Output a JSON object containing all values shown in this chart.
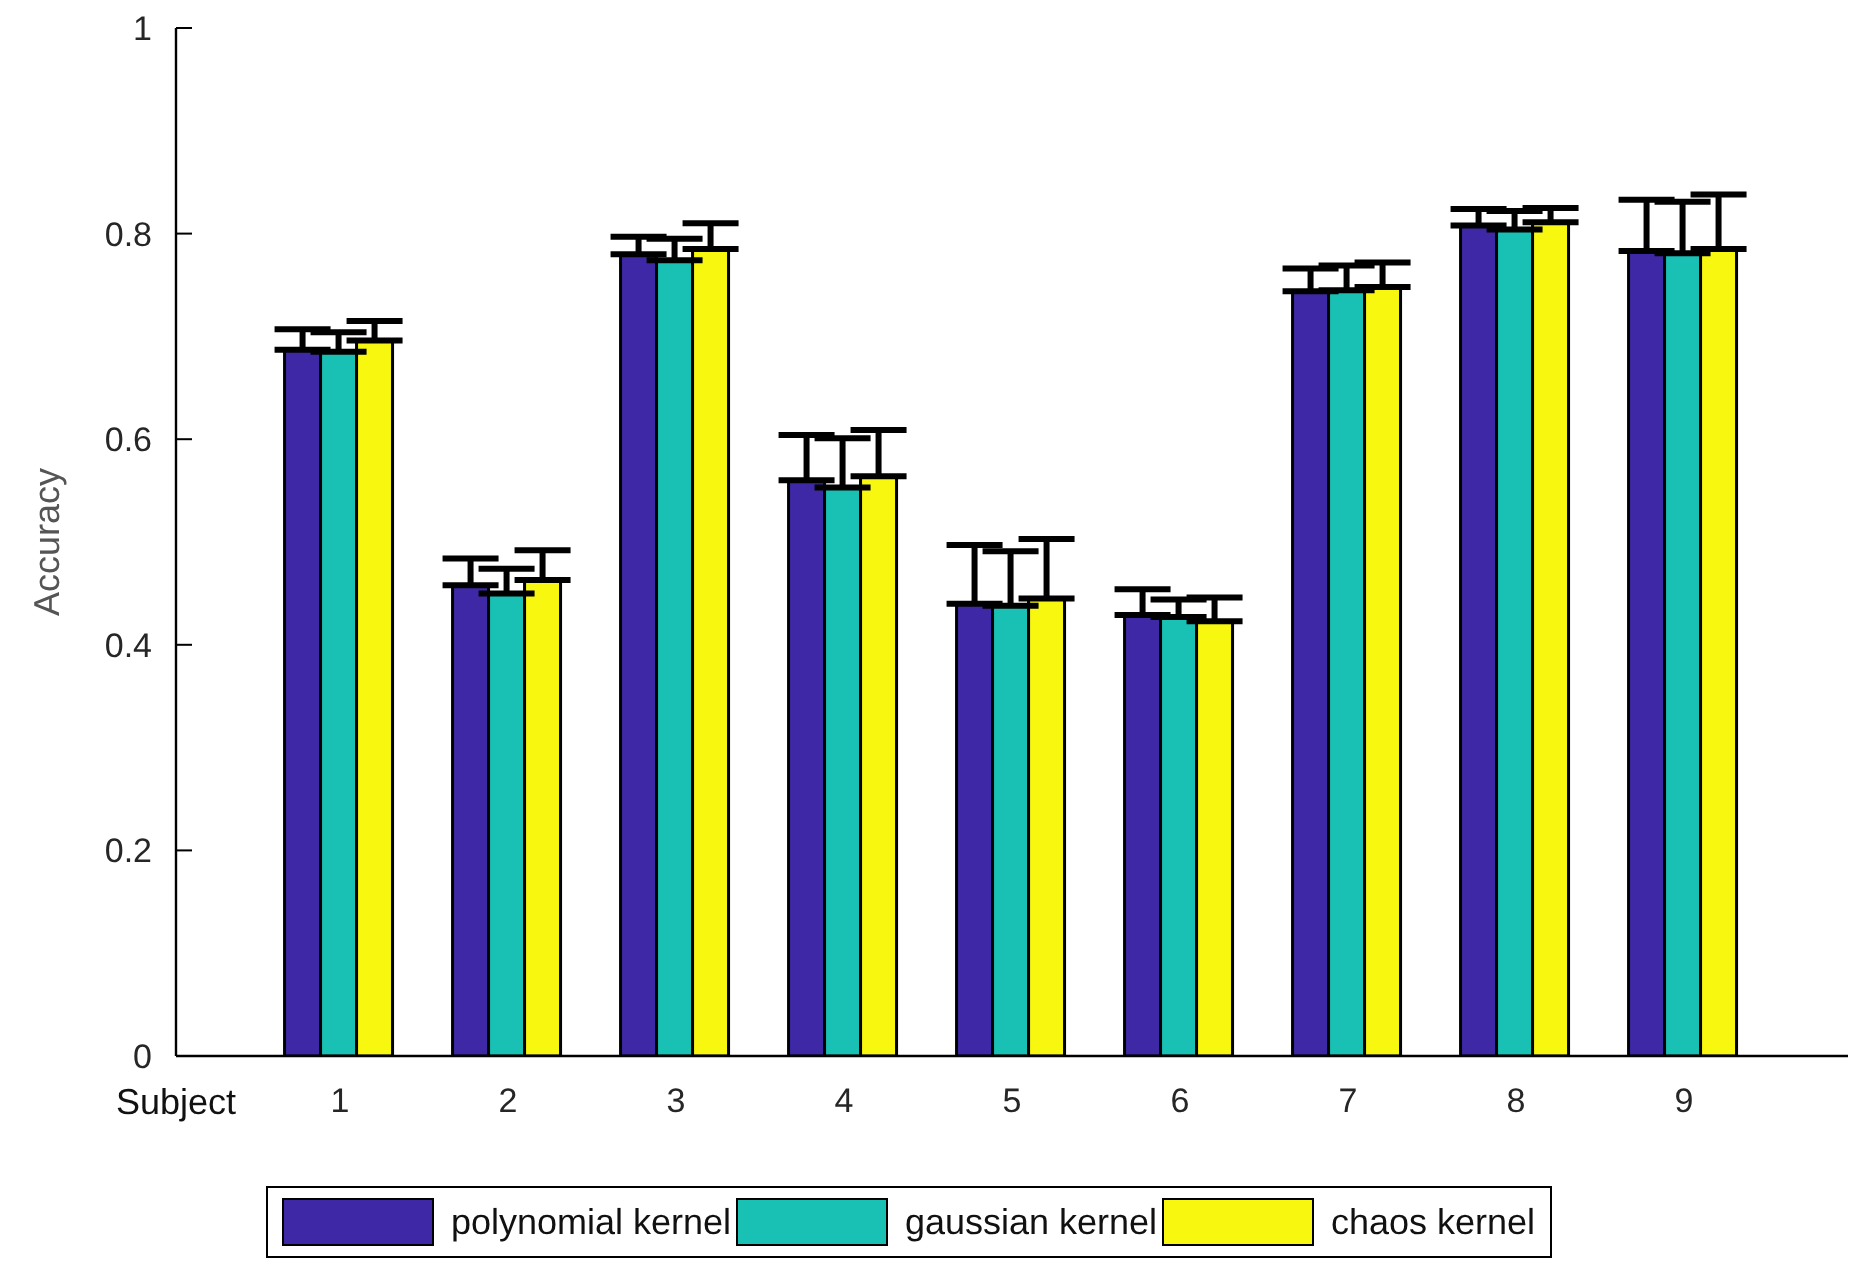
{
  "chart_data": {
    "type": "bar",
    "xlabel": "Subject",
    "ylabel": "Accuracy",
    "categories": [
      "1",
      "2",
      "3",
      "4",
      "5",
      "6",
      "7",
      "8",
      "9"
    ],
    "series": [
      {
        "name": "polynomial kernel",
        "color": "#3f28a6",
        "values": [
          0.687,
          0.458,
          0.78,
          0.56,
          0.44,
          0.429,
          0.744,
          0.808,
          0.783
        ],
        "errors": [
          [
            0.687,
            0.707
          ],
          [
            0.458,
            0.484
          ],
          [
            0.78,
            0.797
          ],
          [
            0.56,
            0.604
          ],
          [
            0.44,
            0.497
          ],
          [
            0.429,
            0.454
          ],
          [
            0.744,
            0.766
          ],
          [
            0.808,
            0.824
          ],
          [
            0.783,
            0.833
          ]
        ]
      },
      {
        "name": "gaussian kernel",
        "color": "#19c1b4",
        "values": [
          0.685,
          0.45,
          0.774,
          0.553,
          0.438,
          0.427,
          0.745,
          0.804,
          0.781
        ],
        "errors": [
          [
            0.685,
            0.704
          ],
          [
            0.45,
            0.474
          ],
          [
            0.774,
            0.795
          ],
          [
            0.553,
            0.601
          ],
          [
            0.438,
            0.491
          ],
          [
            0.427,
            0.444
          ],
          [
            0.745,
            0.769
          ],
          [
            0.804,
            0.822
          ],
          [
            0.781,
            0.831
          ]
        ]
      },
      {
        "name": "chaos kernel",
        "color": "#f7f710",
        "values": [
          0.696,
          0.463,
          0.785,
          0.564,
          0.445,
          0.423,
          0.748,
          0.811,
          0.785
        ],
        "errors": [
          [
            0.696,
            0.715
          ],
          [
            0.463,
            0.492
          ],
          [
            0.785,
            0.81
          ],
          [
            0.564,
            0.609
          ],
          [
            0.445,
            0.503
          ],
          [
            0.423,
            0.446
          ],
          [
            0.748,
            0.772
          ],
          [
            0.811,
            0.825
          ],
          [
            0.785,
            0.838
          ]
        ]
      }
    ],
    "ylim": [
      0,
      1
    ],
    "yticks": [
      0,
      0.2,
      0.4,
      0.6,
      0.8,
      1
    ],
    "grid": false,
    "legend": "bottom"
  }
}
